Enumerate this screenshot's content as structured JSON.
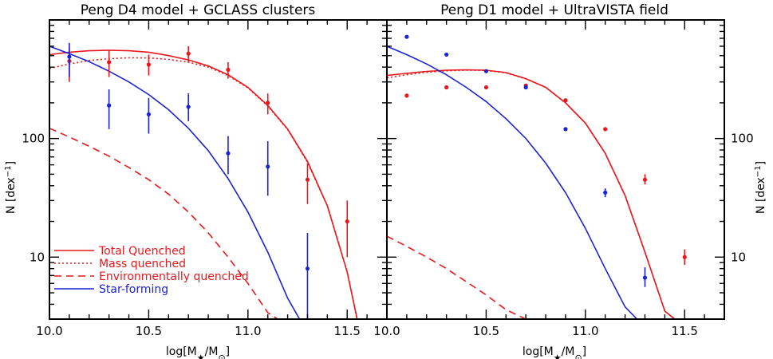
{
  "chart_data": [
    {
      "type": "line",
      "title": "Peng D4 model + GCLASS clusters",
      "xlabel": "log[M*/M⊙]",
      "ylabel": "N [dex⁻¹]",
      "xlim": [
        10.0,
        11.7
      ],
      "ylim": [
        3,
        1000
      ],
      "y_scale": "log",
      "x_ticks": [
        "10.0",
        "10.5",
        "11.0",
        "11.5"
      ],
      "y_ticks": [
        "10",
        "100"
      ],
      "legend": {
        "placement": "bottom-left",
        "entries": [
          {
            "label": "Total Quenched",
            "style": "solid",
            "color": "#e8181c"
          },
          {
            "label": "Mass quenched",
            "style": "dotted",
            "color": "#e8181c"
          },
          {
            "label": "Environmentally quenched",
            "style": "dashed",
            "color": "#e8181c"
          },
          {
            "label": "Star-forming",
            "style": "solid",
            "color": "#1c23d4"
          }
        ]
      },
      "curves": [
        {
          "name": "Total Quenched",
          "style": "solid",
          "color": "#e8181c",
          "x": [
            10.0,
            10.1,
            10.2,
            10.3,
            10.4,
            10.5,
            10.6,
            10.7,
            10.8,
            10.9,
            11.0,
            11.1,
            11.2,
            11.3,
            11.4,
            11.5,
            11.55
          ],
          "y": [
            510,
            535,
            550,
            555,
            550,
            535,
            500,
            460,
            410,
            345,
            270,
            190,
            120,
            64,
            27,
            7.5,
            3
          ]
        },
        {
          "name": "Mass quenched",
          "style": "dotted",
          "color": "#e8181c",
          "x": [
            10.0,
            10.1,
            10.2,
            10.3,
            10.4,
            10.5,
            10.6,
            10.7,
            10.8,
            10.9,
            11.0,
            11.1,
            11.2,
            11.3,
            11.4,
            11.5,
            11.55
          ],
          "y": [
            390,
            425,
            455,
            470,
            480,
            478,
            465,
            440,
            400,
            340,
            267,
            188,
            119,
            63,
            27,
            7.5,
            3
          ]
        },
        {
          "name": "Environmentally quenched",
          "style": "dashed",
          "color": "#e8181c",
          "x": [
            10.0,
            10.1,
            10.2,
            10.3,
            10.4,
            10.5,
            10.6,
            10.7,
            10.8,
            10.9,
            11.0,
            11.1,
            11.15
          ],
          "y": [
            122,
            103,
            86,
            71,
            57,
            45,
            34,
            24,
            16,
            10,
            6,
            3.4,
            3
          ]
        },
        {
          "name": "Star-forming",
          "style": "solid",
          "color": "#1c23d4",
          "x": [
            10.0,
            10.1,
            10.2,
            10.3,
            10.4,
            10.5,
            10.6,
            10.7,
            10.8,
            10.9,
            11.0,
            11.1,
            11.2,
            11.26
          ],
          "y": [
            600,
            520,
            445,
            370,
            300,
            235,
            175,
            122,
            79,
            46,
            24,
            11,
            4.5,
            3
          ]
        }
      ],
      "points": [
        {
          "color": "#e8181c",
          "x": [
            10.1,
            10.3,
            10.5,
            10.7,
            10.9,
            11.1,
            11.3,
            11.5
          ],
          "y": [
            450,
            440,
            420,
            520,
            380,
            200,
            45,
            20
          ],
          "y_low": [
            300,
            330,
            340,
            440,
            320,
            160,
            28,
            10
          ],
          "y_high": [
            580,
            560,
            510,
            600,
            440,
            240,
            62,
            30
          ]
        },
        {
          "color": "#1c23d4",
          "x": [
            10.1,
            10.3,
            10.5,
            10.7,
            10.9,
            11.1,
            11.3
          ],
          "y": [
            490,
            190,
            160,
            185,
            75,
            58,
            8
          ],
          "y_low": [
            330,
            120,
            110,
            140,
            50,
            33,
            3
          ],
          "y_high": [
            640,
            260,
            220,
            240,
            105,
            95,
            16
          ]
        }
      ]
    },
    {
      "type": "line",
      "title": "Peng D1 model + UltraVISTA field",
      "xlabel": "log[M*/M⊙]",
      "ylabel": "N [dex⁻¹]",
      "xlim": [
        10.0,
        11.7
      ],
      "ylim": [
        3,
        1000
      ],
      "y_scale": "log",
      "x_ticks": [
        "10.0",
        "10.5",
        "11.0",
        "11.5"
      ],
      "y_ticks": [
        "10",
        "100"
      ],
      "curves": [
        {
          "name": "Total Quenched",
          "style": "solid",
          "color": "#e8181c",
          "x": [
            10.0,
            10.1,
            10.2,
            10.3,
            10.4,
            10.5,
            10.6,
            10.7,
            10.8,
            10.9,
            11.0,
            11.1,
            11.2,
            11.3,
            11.4,
            11.45
          ],
          "y": [
            340,
            355,
            368,
            377,
            380,
            377,
            360,
            320,
            270,
            200,
            135,
            75,
            33,
            11,
            3.5,
            3
          ]
        },
        {
          "name": "Mass quenched",
          "style": "dotted",
          "color": "#e8181c",
          "x": [
            10.0,
            10.1,
            10.2,
            10.3,
            10.4,
            10.5,
            10.6,
            10.7,
            10.8,
            10.9,
            11.0,
            11.1,
            11.2,
            11.3,
            11.4,
            11.45
          ],
          "y": [
            325,
            345,
            362,
            372,
            377,
            375,
            358,
            319,
            270,
            200,
            135,
            75,
            33,
            11,
            3.5,
            3
          ]
        },
        {
          "name": "Environmentally quenched",
          "style": "dashed",
          "color": "#e8181c",
          "x": [
            10.0,
            10.1,
            10.2,
            10.3,
            10.4,
            10.5,
            10.6,
            10.7
          ],
          "y": [
            15,
            12.3,
            10,
            8,
            6.2,
            4.8,
            3.6,
            3
          ]
        },
        {
          "name": "Star-forming",
          "style": "solid",
          "color": "#1c23d4",
          "x": [
            10.0,
            10.1,
            10.2,
            10.3,
            10.4,
            10.5,
            10.6,
            10.7,
            10.8,
            10.9,
            11.0,
            11.1,
            11.2,
            11.26
          ],
          "y": [
            600,
            510,
            425,
            345,
            270,
            205,
            147,
            100,
            62,
            35,
            17.5,
            8,
            3.8,
            3
          ]
        }
      ],
      "points": [
        {
          "color": "#e8181c",
          "x": [
            10.1,
            10.3,
            10.5,
            10.7,
            10.9,
            11.1,
            11.3,
            11.5
          ],
          "y": [
            230,
            270,
            270,
            280,
            210,
            120,
            45,
            10
          ],
          "y_low": [
            null,
            null,
            null,
            null,
            null,
            null,
            41,
            8.6
          ],
          "y_high": [
            null,
            null,
            null,
            null,
            null,
            null,
            50,
            11.6
          ]
        },
        {
          "color": "#1c23d4",
          "x": [
            10.1,
            10.3,
            10.5,
            10.7,
            10.9,
            11.1,
            11.3
          ],
          "y": [
            720,
            510,
            370,
            270,
            120,
            35,
            6.7
          ],
          "y_low": [
            null,
            null,
            null,
            null,
            null,
            32,
            5.6
          ],
          "y_high": [
            null,
            null,
            null,
            null,
            null,
            38,
            8.2
          ]
        }
      ]
    }
  ]
}
